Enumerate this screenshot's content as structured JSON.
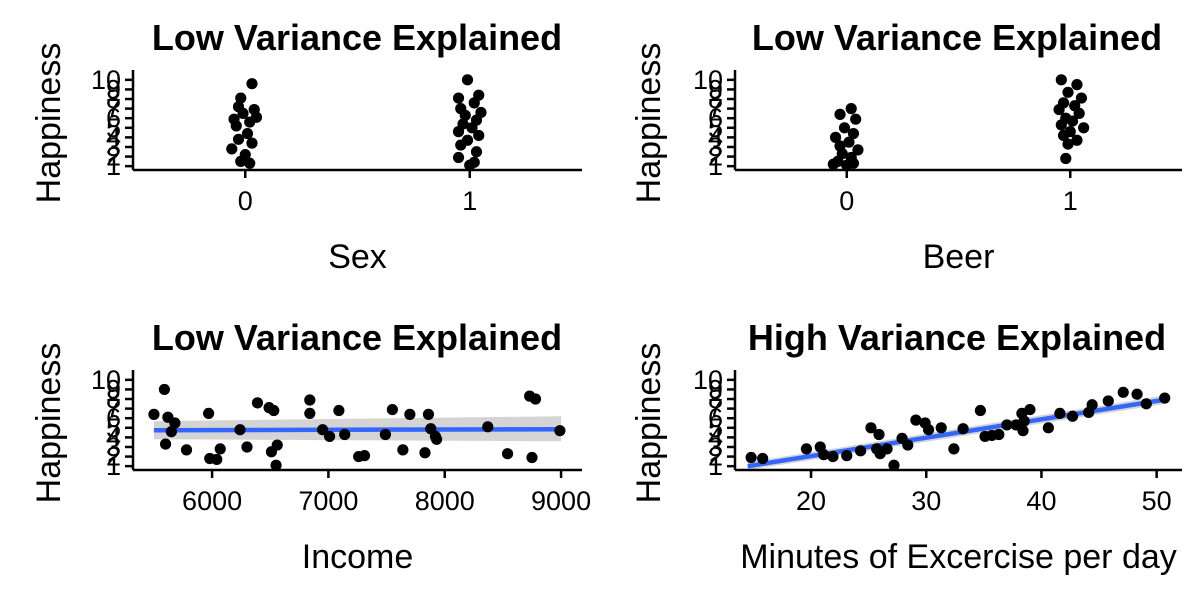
{
  "chart_data": [
    {
      "type": "scatter",
      "title": "Low Variance Explained",
      "xlabel": "Sex",
      "ylabel": "Happiness",
      "x_ticks": [
        0,
        1
      ],
      "y_ticks": [
        1,
        2,
        3,
        4,
        5,
        6,
        7,
        8,
        9,
        10
      ],
      "xlim": [
        -0.5,
        1.5
      ],
      "ylim": [
        0.6,
        10.4
      ],
      "jitter": true,
      "fit_line": false,
      "point_color": "#000000",
      "points": [
        [
          0.03,
          9.6
        ],
        [
          -0.02,
          8.1
        ],
        [
          -0.03,
          7.2
        ],
        [
          0.04,
          6.9
        ],
        [
          -0.01,
          6.5
        ],
        [
          0.05,
          6.1
        ],
        [
          -0.05,
          5.9
        ],
        [
          0.02,
          5.6
        ],
        [
          -0.04,
          5.2
        ],
        [
          0.01,
          4.4
        ],
        [
          -0.03,
          3.8
        ],
        [
          0.03,
          3.4
        ],
        [
          -0.06,
          2.8
        ],
        [
          0.0,
          2.2
        ],
        [
          -0.02,
          1.5
        ],
        [
          0.02,
          1.3
        ],
        [
          0.99,
          10.0
        ],
        [
          1.04,
          8.4
        ],
        [
          0.95,
          8.1
        ],
        [
          1.02,
          7.6
        ],
        [
          0.96,
          7.0
        ],
        [
          1.05,
          6.6
        ],
        [
          0.98,
          6.3
        ],
        [
          1.03,
          5.8
        ],
        [
          0.97,
          5.4
        ],
        [
          1.01,
          5.0
        ],
        [
          0.95,
          4.6
        ],
        [
          1.04,
          4.2
        ],
        [
          0.99,
          3.7
        ],
        [
          0.96,
          3.2
        ],
        [
          1.03,
          2.5
        ],
        [
          0.95,
          1.9
        ],
        [
          1.02,
          1.4
        ],
        [
          1.0,
          1.1
        ]
      ]
    },
    {
      "type": "scatter",
      "title": "Low Variance Explained",
      "xlabel": "Beer",
      "ylabel": "Happiness",
      "x_ticks": [
        0,
        1
      ],
      "y_ticks": [
        1,
        2,
        3,
        4,
        5,
        6,
        7,
        8,
        9,
        10
      ],
      "xlim": [
        -0.5,
        1.5
      ],
      "ylim": [
        0.6,
        10.4
      ],
      "jitter": true,
      "fit_line": false,
      "point_color": "#000000",
      "points": [
        [
          0.02,
          7.0
        ],
        [
          -0.03,
          6.4
        ],
        [
          0.04,
          5.9
        ],
        [
          -0.01,
          5.0
        ],
        [
          0.03,
          4.4
        ],
        [
          -0.05,
          4.0
        ],
        [
          0.01,
          3.5
        ],
        [
          -0.03,
          3.1
        ],
        [
          0.05,
          2.7
        ],
        [
          -0.02,
          2.3
        ],
        [
          0.02,
          1.9
        ],
        [
          -0.04,
          1.5
        ],
        [
          0.03,
          1.3
        ],
        [
          0.0,
          1.1
        ],
        [
          -0.06,
          1.2
        ],
        [
          0.96,
          10.0
        ],
        [
          1.03,
          9.5
        ],
        [
          0.99,
          8.7
        ],
        [
          1.05,
          8.1
        ],
        [
          0.97,
          7.6
        ],
        [
          1.02,
          7.3
        ],
        [
          0.95,
          6.9
        ],
        [
          1.04,
          6.5
        ],
        [
          0.98,
          6.0
        ],
        [
          1.01,
          5.7
        ],
        [
          0.96,
          5.3
        ],
        [
          1.06,
          5.0
        ],
        [
          1.0,
          4.6
        ],
        [
          0.97,
          4.2
        ],
        [
          1.03,
          3.7
        ],
        [
          0.99,
          3.3
        ],
        [
          0.98,
          1.8
        ]
      ]
    },
    {
      "type": "scatter",
      "title": "Low Variance Explained",
      "xlabel": "Income",
      "ylabel": "Happiness",
      "x_ticks": [
        6000,
        7000,
        8000,
        9000
      ],
      "y_ticks": [
        1,
        2,
        3,
        4,
        5,
        6,
        7,
        8,
        9,
        10
      ],
      "xlim": [
        5320,
        9180
      ],
      "ylim": [
        0.6,
        10.4
      ],
      "jitter": false,
      "fit_line": true,
      "fit": {
        "x": [
          5500,
          9000
        ],
        "y": [
          4.75,
          4.85
        ],
        "band_low": [
          3.8,
          3.6
        ],
        "band_high": [
          5.7,
          6.2
        ],
        "line_color": "#3366ff",
        "band_color": "#cccccc"
      },
      "point_color": "#000000",
      "points": [
        [
          5500,
          6.4
        ],
        [
          5590,
          9.0
        ],
        [
          5620,
          6.1
        ],
        [
          5600,
          3.3
        ],
        [
          5650,
          4.6
        ],
        [
          5680,
          5.5
        ],
        [
          5780,
          2.7
        ],
        [
          5970,
          6.5
        ],
        [
          5980,
          1.8
        ],
        [
          6040,
          1.7
        ],
        [
          6070,
          2.8
        ],
        [
          6240,
          4.8
        ],
        [
          6300,
          3.0
        ],
        [
          6390,
          7.6
        ],
        [
          6490,
          7.1
        ],
        [
          6530,
          6.8
        ],
        [
          6510,
          2.5
        ],
        [
          6550,
          1.1
        ],
        [
          6560,
          3.2
        ],
        [
          6840,
          7.9
        ],
        [
          6840,
          6.5
        ],
        [
          6950,
          4.8
        ],
        [
          7010,
          4.1
        ],
        [
          7090,
          6.8
        ],
        [
          7140,
          4.3
        ],
        [
          7260,
          2.0
        ],
        [
          7310,
          2.1
        ],
        [
          7490,
          4.3
        ],
        [
          7550,
          6.9
        ],
        [
          7640,
          2.7
        ],
        [
          7700,
          6.4
        ],
        [
          7830,
          2.4
        ],
        [
          7860,
          6.4
        ],
        [
          7880,
          4.9
        ],
        [
          7920,
          4.1
        ],
        [
          7930,
          3.8
        ],
        [
          8370,
          5.1
        ],
        [
          8540,
          2.3
        ],
        [
          8730,
          8.3
        ],
        [
          8780,
          8.0
        ],
        [
          8750,
          1.9
        ],
        [
          8990,
          4.7
        ]
      ]
    },
    {
      "type": "scatter",
      "title": "High Variance Explained",
      "xlabel": "Minutes of Excercise per day",
      "ylabel": "Happiness",
      "x_ticks": [
        20,
        30,
        40,
        50
      ],
      "y_ticks": [
        1,
        2,
        3,
        4,
        5,
        6,
        7,
        8,
        9,
        10
      ],
      "xlim": [
        13.4,
        52.2
      ],
      "ylim": [
        0.6,
        10.4
      ],
      "jitter": false,
      "fit_line": true,
      "fit": {
        "x": [
          14.5,
          50.8
        ],
        "y": [
          1.0,
          7.95
        ],
        "band_low": [
          0.6,
          7.5
        ],
        "band_high": [
          1.4,
          8.4
        ],
        "line_color": "#3366ff",
        "band_color": "#cccccc"
      },
      "point_color": "#000000",
      "points": [
        [
          14.8,
          1.9
        ],
        [
          15.8,
          1.8
        ],
        [
          19.6,
          2.8
        ],
        [
          20.8,
          3.0
        ],
        [
          21.1,
          2.2
        ],
        [
          21.9,
          2.0
        ],
        [
          23.1,
          2.1
        ],
        [
          24.3,
          2.6
        ],
        [
          25.2,
          5.0
        ],
        [
          25.7,
          2.8
        ],
        [
          25.9,
          4.3
        ],
        [
          26.0,
          2.3
        ],
        [
          26.6,
          2.8
        ],
        [
          27.2,
          1.1
        ],
        [
          27.9,
          3.9
        ],
        [
          28.4,
          3.2
        ],
        [
          29.1,
          5.8
        ],
        [
          29.9,
          5.5
        ],
        [
          30.2,
          4.8
        ],
        [
          31.3,
          5.0
        ],
        [
          32.4,
          2.8
        ],
        [
          33.2,
          4.9
        ],
        [
          34.7,
          6.8
        ],
        [
          35.1,
          4.1
        ],
        [
          35.7,
          4.2
        ],
        [
          36.3,
          4.3
        ],
        [
          37.0,
          5.3
        ],
        [
          37.8,
          5.3
        ],
        [
          38.3,
          6.5
        ],
        [
          38.4,
          4.7
        ],
        [
          38.5,
          5.7
        ],
        [
          39.0,
          6.9
        ],
        [
          40.6,
          5.0
        ],
        [
          41.6,
          6.5
        ],
        [
          42.7,
          6.2
        ],
        [
          44.1,
          6.6
        ],
        [
          44.4,
          7.4
        ],
        [
          45.8,
          7.8
        ],
        [
          47.1,
          8.7
        ],
        [
          48.3,
          8.5
        ],
        [
          49.1,
          7.5
        ],
        [
          50.7,
          8.1
        ]
      ]
    }
  ]
}
